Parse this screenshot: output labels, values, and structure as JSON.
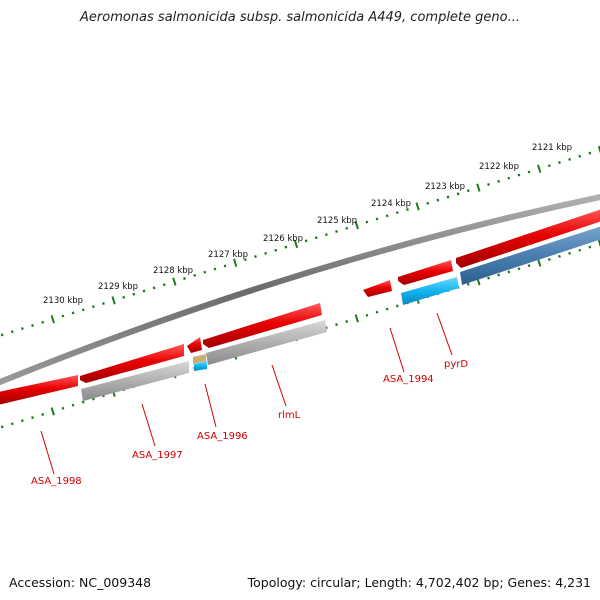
{
  "title": "Aeromonas salmonicida subsp. salmonicida A449, complete geno...",
  "footer": {
    "accession": "Accession: NC_009348",
    "summary": "Topology: circular; Length: 4,702,402 bp; Genes: 4,231"
  },
  "ticks": [
    "2121 kbp",
    "2122 kbp",
    "2123 kbp",
    "2124 kbp",
    "2125 kbp",
    "2126 kbp",
    "2127 kbp",
    "2128 kbp",
    "2129 kbp",
    "2130 kbp"
  ],
  "genes": [
    "ASA_1994",
    "pyrD",
    "rlmL",
    "ASA_1996",
    "ASA_1997",
    "ASA_1998"
  ],
  "colors": {
    "forward_cds": "#e10000",
    "reverse_cds": "#4a7fb0",
    "gray_cds": "#a9a9a9",
    "cyan_cds": "#14b4f0",
    "backbone": "#707070",
    "tick": "#1f7a1f",
    "label": "#d40000"
  }
}
